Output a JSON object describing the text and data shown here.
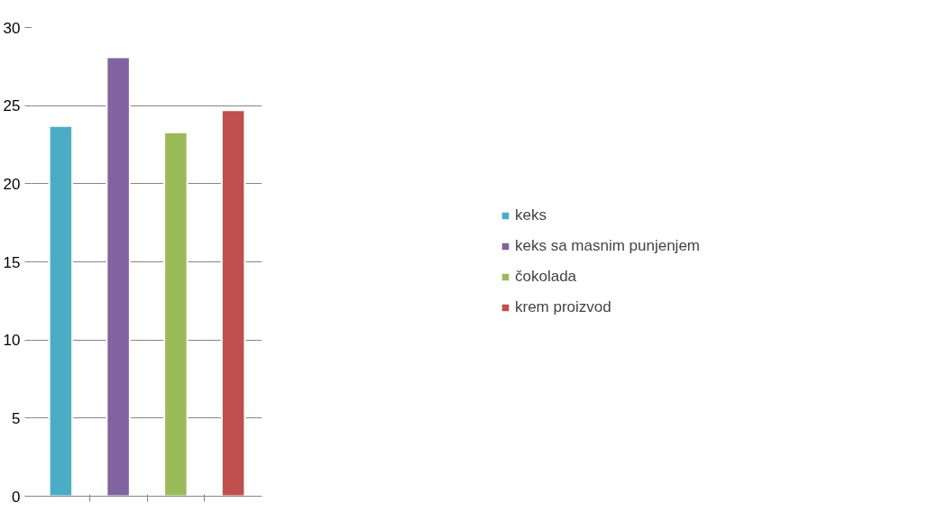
{
  "chart_data": {
    "type": "bar",
    "categories": [
      null,
      null,
      null,
      null
    ],
    "series": [
      {
        "name": "keks",
        "color": "#4bacc6",
        "values": [
          23.7,
          null,
          null,
          null
        ]
      },
      {
        "name": "keks sa masnim punjenjem",
        "color": "#8064a2",
        "values": [
          null,
          28.1,
          null,
          null
        ]
      },
      {
        "name": "čokolada",
        "color": "#9bbb59",
        "values": [
          null,
          null,
          23.3,
          null
        ]
      },
      {
        "name": "krem proizvod",
        "color": "#c0504d",
        "values": [
          null,
          null,
          null,
          24.7
        ]
      }
    ],
    "ylim": [
      0,
      30
    ],
    "yticks": [
      0,
      5,
      10,
      15,
      20,
      25,
      30
    ],
    "grid": "y",
    "legend": "right",
    "tick_labels": "y"
  }
}
